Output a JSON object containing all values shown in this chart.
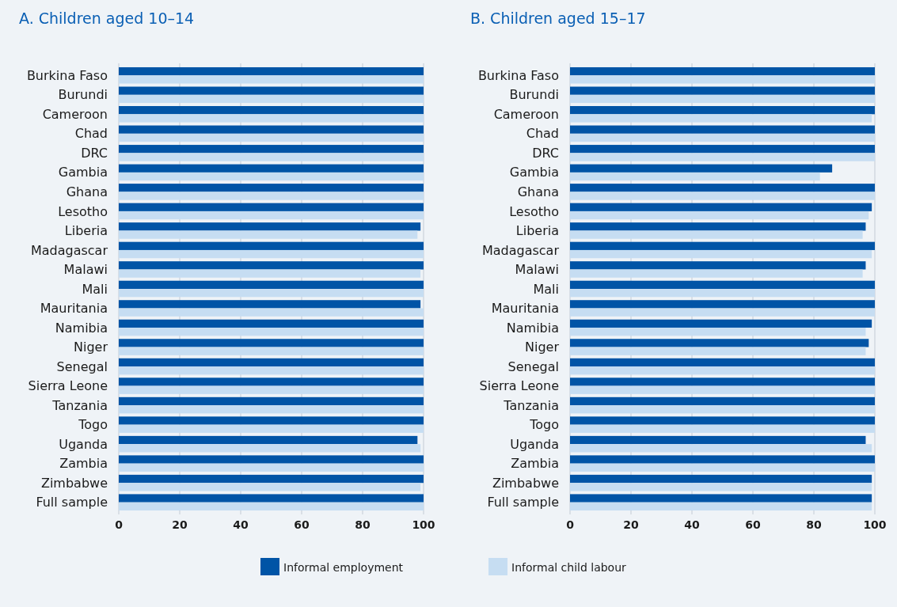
{
  "chart_data": [
    {
      "type": "bar",
      "orientation": "horizontal",
      "title": "A. Children aged 10–14",
      "categories": [
        "Burkina Faso",
        "Burundi",
        "Cameroon",
        "Chad",
        "DRC",
        "Gambia",
        "Ghana",
        "Lesotho",
        "Liberia",
        "Madagascar",
        "Malawi",
        "Mali",
        "Mauritania",
        "Namibia",
        "Niger",
        "Senegal",
        "Sierra Leone",
        "Tanzania",
        "Togo",
        "Uganda",
        "Zambia",
        "Zimbabwe",
        "Full sample"
      ],
      "series": [
        {
          "name": "Informal employment",
          "color": "#0054a6",
          "values": [
            100,
            100,
            100,
            100,
            100,
            100,
            100,
            100,
            99,
            100,
            100,
            100,
            99,
            100,
            100,
            100,
            100,
            100,
            100,
            98,
            100,
            100,
            100
          ]
        },
        {
          "name": "Informal child labour",
          "color": "#c6ddf2",
          "values": [
            100,
            100,
            100,
            100,
            100,
            100,
            100,
            100,
            98,
            100,
            99,
            100,
            100,
            100,
            100,
            100,
            100,
            100,
            100,
            99,
            100,
            99,
            100
          ]
        }
      ],
      "xlim": [
        0,
        100
      ],
      "xticks": [
        0,
        20,
        40,
        60,
        80,
        100
      ],
      "grid": "x",
      "legend": "bottom"
    },
    {
      "type": "bar",
      "orientation": "horizontal",
      "title": "B. Children aged 15–17",
      "categories": [
        "Burkina Faso",
        "Burundi",
        "Cameroon",
        "Chad",
        "DRC",
        "Gambia",
        "Ghana",
        "Lesotho",
        "Liberia",
        "Madagascar",
        "Malawi",
        "Mali",
        "Mauritania",
        "Namibia",
        "Niger",
        "Senegal",
        "Sierra Leone",
        "Tanzania",
        "Togo",
        "Uganda",
        "Zambia",
        "Zimbabwe",
        "Full sample"
      ],
      "series": [
        {
          "color": "#0054a6",
          "values": [
            100,
            100,
            100,
            100,
            100,
            86,
            100,
            99,
            97,
            100,
            97,
            100,
            100,
            99,
            98,
            100,
            100,
            100,
            100,
            97,
            100,
            99,
            99
          ]
        },
        {
          "color": "#c6ddf2",
          "values": [
            100,
            100,
            99,
            100,
            100,
            82,
            100,
            98,
            96,
            99,
            96,
            100,
            100,
            97,
            97,
            100,
            100,
            100,
            100,
            99,
            100,
            99,
            99
          ]
        }
      ],
      "xlim": [
        0,
        100
      ],
      "xticks": [
        0,
        20,
        40,
        60,
        80,
        100
      ],
      "grid": "x"
    }
  ]
}
